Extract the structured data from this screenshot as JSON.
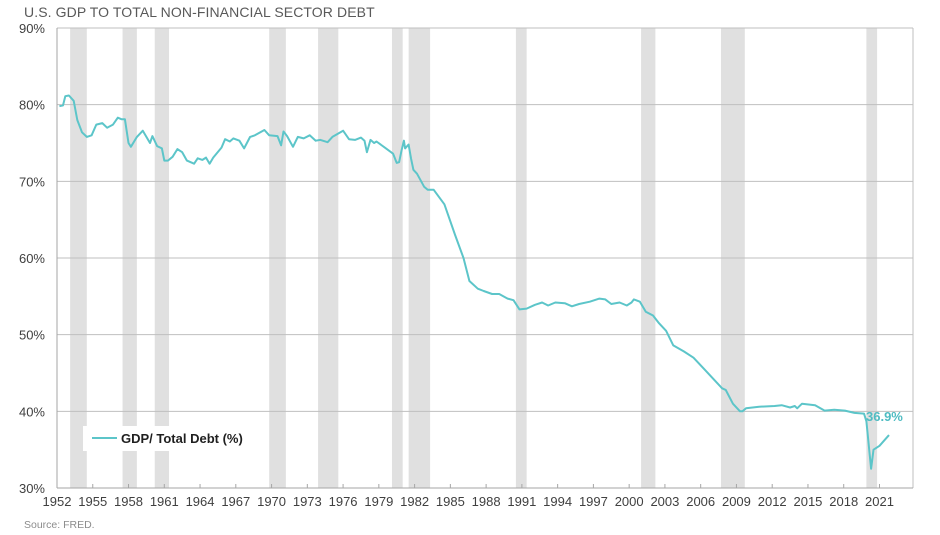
{
  "chart_data": {
    "type": "line",
    "title": "U.S. GDP TO TOTAL NON-FINANCIAL SECTOR DEBT",
    "source": "Source: FRED.",
    "xlabel": "",
    "ylabel": "",
    "xlim": [
      1952,
      2024
    ],
    "ylim": [
      30,
      90
    ],
    "x_ticks": [
      1952,
      1955,
      1958,
      1961,
      1964,
      1967,
      1970,
      1973,
      1976,
      1979,
      1982,
      1985,
      1988,
      1991,
      1994,
      1997,
      2000,
      2003,
      2006,
      2009,
      2012,
      2015,
      2018,
      2021
    ],
    "y_ticks": [
      30,
      40,
      50,
      60,
      70,
      80,
      90
    ],
    "y_tick_labels": [
      "30%",
      "40%",
      "50%",
      "60%",
      "70%",
      "80%",
      "90%"
    ],
    "grid": "horizontal",
    "legend": {
      "position": "bottom-left",
      "entries": [
        "GDP/ Total Debt (%)"
      ]
    },
    "annotation": "36.9%",
    "colors": {
      "line": "#5cc5c9",
      "recession": "#e0e0e0",
      "grid": "#bfbfbf"
    },
    "recessions": [
      [
        1953.1,
        1954.5
      ],
      [
        1957.5,
        1958.7
      ],
      [
        1960.2,
        1961.4
      ],
      [
        1969.8,
        1971.2
      ],
      [
        1973.9,
        1975.6
      ],
      [
        1980.1,
        1981.0
      ],
      [
        1981.5,
        1983.3
      ],
      [
        1990.5,
        1991.4
      ],
      [
        2001.0,
        2002.2
      ],
      [
        2007.7,
        2009.7
      ],
      [
        2019.9,
        2020.8
      ]
    ],
    "series": [
      {
        "name": "GDP/ Total Debt (%)",
        "points": [
          [
            1952.2,
            79.8
          ],
          [
            1952.5,
            79.9
          ],
          [
            1952.7,
            81.1
          ],
          [
            1953.0,
            81.2
          ],
          [
            1953.4,
            80.5
          ],
          [
            1953.7,
            78.0
          ],
          [
            1954.1,
            76.4
          ],
          [
            1954.5,
            75.8
          ],
          [
            1954.9,
            76.0
          ],
          [
            1955.3,
            77.4
          ],
          [
            1955.8,
            77.6
          ],
          [
            1956.2,
            77.0
          ],
          [
            1956.7,
            77.4
          ],
          [
            1957.1,
            78.3
          ],
          [
            1957.4,
            78.1
          ],
          [
            1957.7,
            78.1
          ],
          [
            1958.0,
            75.0
          ],
          [
            1958.2,
            74.5
          ],
          [
            1958.7,
            75.8
          ],
          [
            1959.2,
            76.6
          ],
          [
            1959.8,
            75.0
          ],
          [
            1960.0,
            75.9
          ],
          [
            1960.4,
            74.6
          ],
          [
            1960.8,
            74.3
          ],
          [
            1961.0,
            72.7
          ],
          [
            1961.3,
            72.7
          ],
          [
            1961.7,
            73.2
          ],
          [
            1962.1,
            74.2
          ],
          [
            1962.5,
            73.8
          ],
          [
            1962.9,
            72.7
          ],
          [
            1963.5,
            72.3
          ],
          [
            1963.8,
            73.0
          ],
          [
            1964.2,
            72.8
          ],
          [
            1964.5,
            73.1
          ],
          [
            1964.8,
            72.3
          ],
          [
            1965.1,
            73.1
          ],
          [
            1965.8,
            74.4
          ],
          [
            1966.1,
            75.5
          ],
          [
            1966.5,
            75.2
          ],
          [
            1966.8,
            75.6
          ],
          [
            1967.3,
            75.3
          ],
          [
            1967.7,
            74.3
          ],
          [
            1968.2,
            75.8
          ],
          [
            1968.6,
            76.0
          ],
          [
            1969.4,
            76.7
          ],
          [
            1969.8,
            76.0
          ],
          [
            1970.5,
            75.9
          ],
          [
            1970.8,
            74.7
          ],
          [
            1971.0,
            76.5
          ],
          [
            1971.3,
            75.9
          ],
          [
            1971.8,
            74.5
          ],
          [
            1972.2,
            75.8
          ],
          [
            1972.7,
            75.6
          ],
          [
            1973.2,
            76.0
          ],
          [
            1973.7,
            75.3
          ],
          [
            1974.1,
            75.4
          ],
          [
            1974.7,
            75.1
          ],
          [
            1975.1,
            75.8
          ],
          [
            1976.0,
            76.6
          ],
          [
            1976.5,
            75.5
          ],
          [
            1977.0,
            75.4
          ],
          [
            1977.5,
            75.7
          ],
          [
            1977.8,
            75.3
          ],
          [
            1978.0,
            73.8
          ],
          [
            1978.3,
            75.4
          ],
          [
            1978.6,
            75.0
          ],
          [
            1978.8,
            75.2
          ],
          [
            1979.5,
            74.4
          ],
          [
            1980.2,
            73.6
          ],
          [
            1980.5,
            72.4
          ],
          [
            1980.7,
            72.5
          ],
          [
            1980.9,
            74.0
          ],
          [
            1981.1,
            75.3
          ],
          [
            1981.2,
            74.3
          ],
          [
            1981.5,
            74.8
          ],
          [
            1981.7,
            73.0
          ],
          [
            1981.9,
            71.5
          ],
          [
            1982.2,
            71.0
          ],
          [
            1982.8,
            69.3
          ],
          [
            1983.1,
            68.9
          ],
          [
            1983.6,
            68.9
          ],
          [
            1984.5,
            67.0
          ],
          [
            1985.4,
            63.0
          ],
          [
            1986.1,
            60.0
          ],
          [
            1986.6,
            57.0
          ],
          [
            1987.3,
            56.0
          ],
          [
            1987.8,
            55.7
          ],
          [
            1988.5,
            55.3
          ],
          [
            1989.1,
            55.3
          ],
          [
            1989.8,
            54.7
          ],
          [
            1990.3,
            54.5
          ],
          [
            1990.8,
            53.3
          ],
          [
            1991.4,
            53.4
          ],
          [
            1992.1,
            53.9
          ],
          [
            1992.7,
            54.2
          ],
          [
            1993.2,
            53.8
          ],
          [
            1993.8,
            54.2
          ],
          [
            1994.6,
            54.1
          ],
          [
            1995.2,
            53.7
          ],
          [
            1995.8,
            54.0
          ],
          [
            1996.7,
            54.3
          ],
          [
            1997.5,
            54.7
          ],
          [
            1998.0,
            54.6
          ],
          [
            1998.5,
            54.0
          ],
          [
            1999.2,
            54.2
          ],
          [
            1999.8,
            53.8
          ],
          [
            2000.2,
            54.2
          ],
          [
            2000.4,
            54.6
          ],
          [
            2000.9,
            54.3
          ],
          [
            2001.4,
            53.0
          ],
          [
            2002.0,
            52.5
          ],
          [
            2002.5,
            51.5
          ],
          [
            2003.1,
            50.5
          ],
          [
            2003.7,
            48.6
          ],
          [
            2004.6,
            47.8
          ],
          [
            2005.4,
            47.0
          ],
          [
            2006.3,
            45.5
          ],
          [
            2007.2,
            44.0
          ],
          [
            2007.8,
            43.0
          ],
          [
            2008.1,
            42.8
          ],
          [
            2008.7,
            41.0
          ],
          [
            2009.3,
            40.0
          ],
          [
            2009.5,
            40.0
          ],
          [
            2009.8,
            40.4
          ],
          [
            2010.9,
            40.6
          ],
          [
            2012.2,
            40.7
          ],
          [
            2012.8,
            40.8
          ],
          [
            2013.5,
            40.5
          ],
          [
            2013.9,
            40.7
          ],
          [
            2014.1,
            40.4
          ],
          [
            2014.5,
            41.0
          ],
          [
            2015.6,
            40.8
          ],
          [
            2016.4,
            40.1
          ],
          [
            2017.2,
            40.2
          ],
          [
            2018.1,
            40.1
          ],
          [
            2018.9,
            39.8
          ],
          [
            2019.7,
            39.7
          ],
          [
            2019.9,
            38.7
          ],
          [
            2020.3,
            32.5
          ],
          [
            2020.5,
            35.0
          ],
          [
            2021.0,
            35.5
          ],
          [
            2021.8,
            36.9
          ]
        ]
      }
    ]
  }
}
